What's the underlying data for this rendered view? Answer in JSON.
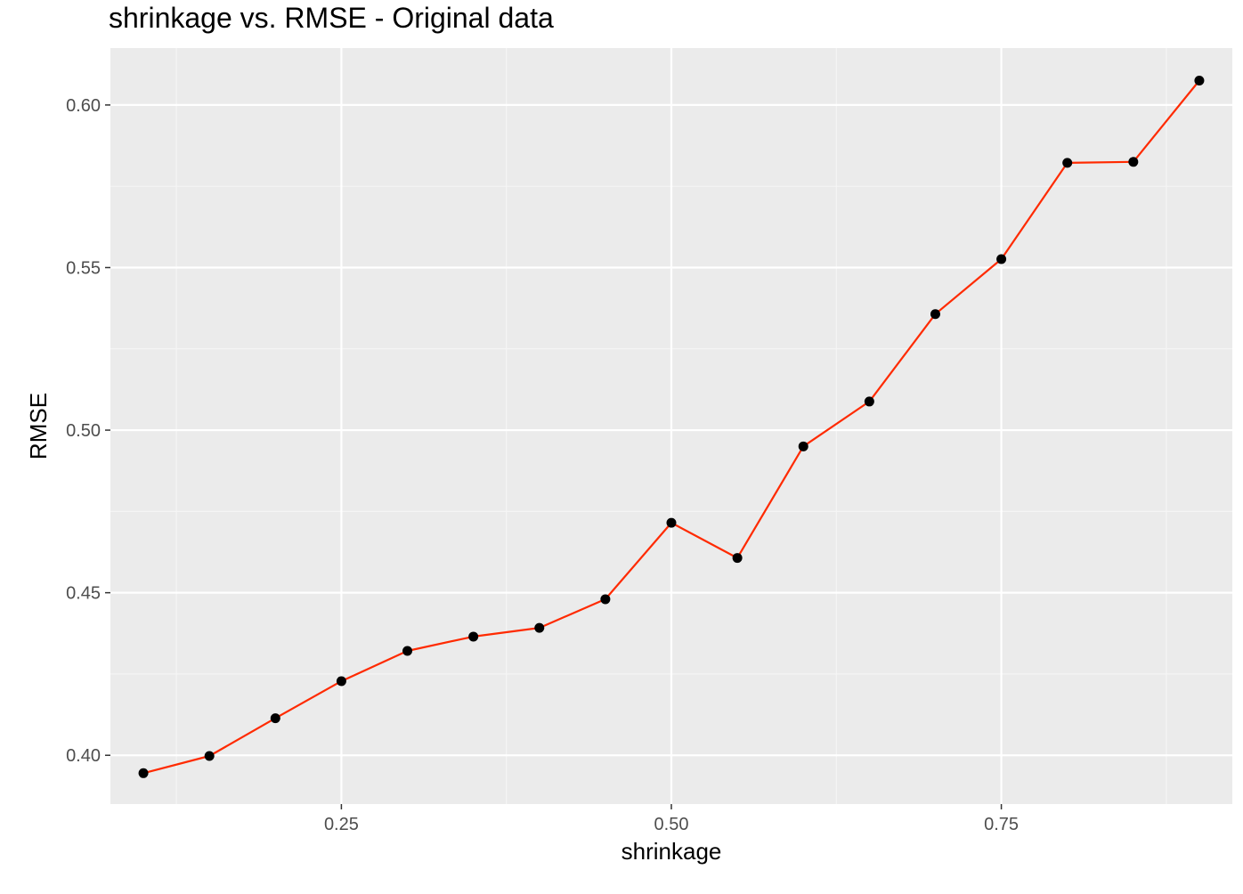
{
  "chart_data": {
    "type": "line",
    "title": "shrinkage vs. RMSE - Original data",
    "xlabel": "shrinkage",
    "ylabel": "RMSE",
    "xlim": [
      0.075,
      0.925
    ],
    "ylim": [
      0.385,
      0.6175
    ],
    "x_ticks": [
      {
        "value": 0.25,
        "label": "0.25"
      },
      {
        "value": 0.5,
        "label": "0.50"
      },
      {
        "value": 0.75,
        "label": "0.75"
      }
    ],
    "x_minor_ticks": [
      0.125,
      0.375,
      0.625,
      0.875
    ],
    "y_ticks": [
      {
        "value": 0.4,
        "label": "0.40"
      },
      {
        "value": 0.45,
        "label": "0.45"
      },
      {
        "value": 0.5,
        "label": "0.50"
      },
      {
        "value": 0.55,
        "label": "0.55"
      },
      {
        "value": 0.6,
        "label": "0.60"
      }
    ],
    "y_minor_ticks": [
      0.425,
      0.475,
      0.525,
      0.575
    ],
    "grid": true,
    "series": [
      {
        "line_color": "#ff2a00",
        "point_color": "#000000",
        "x": [
          0.1,
          0.15,
          0.2,
          0.25,
          0.3,
          0.35,
          0.4,
          0.45,
          0.5,
          0.55,
          0.6,
          0.65,
          0.7,
          0.75,
          0.8,
          0.85,
          0.9
        ],
        "values": [
          0.3945,
          0.3998,
          0.4114,
          0.4228,
          0.4321,
          0.4365,
          0.4392,
          0.448,
          0.4715,
          0.4607,
          0.495,
          0.5088,
          0.5357,
          0.5526,
          0.5822,
          0.5825,
          0.6075
        ]
      }
    ]
  },
  "colors": {
    "panel_background": "#ebebeb",
    "grid_major": "#ffffff",
    "grid_minor": "#f5f5f5",
    "line": "#ff2a00",
    "points": "#000000"
  }
}
